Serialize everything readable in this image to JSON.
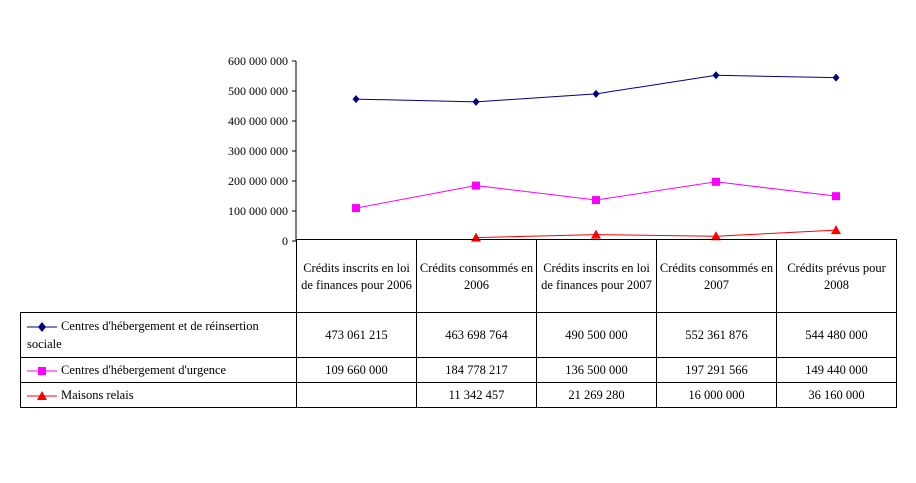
{
  "chart_data": {
    "type": "line",
    "title": "",
    "xlabel": "",
    "ylabel": "",
    "ylim": [
      0,
      600000000
    ],
    "yticks": [
      "0",
      "100 000 000",
      "200 000 000",
      "300 000 000",
      "400 000 000",
      "500 000 000",
      "600 000 000"
    ],
    "categories": [
      "Crédits inscrits en loi de finances pour 2006",
      "Crédits consommés en 2006",
      "Crédits inscrits en loi de finances pour 2007",
      "Crédits consommés en 2007",
      "Crédits prévus pour 2008"
    ],
    "series": [
      {
        "name": "Centres d'hébergement et de réinsertion sociale",
        "color": "#000080",
        "marker": "diamond",
        "values": [
          473061215,
          463698764,
          490500000,
          552361876,
          544480000
        ],
        "labels": [
          "473 061 215",
          "463 698 764",
          "490 500 000",
          "552 361 876",
          "544 480 000"
        ]
      },
      {
        "name": "Centres d'hébergement d'urgence",
        "color": "#ff00ff",
        "marker": "square",
        "values": [
          109660000,
          184778217,
          136500000,
          197291566,
          149440000
        ],
        "labels": [
          "109 660 000",
          "184 778 217",
          "136 500 000",
          "197 291 566",
          "149 440 000"
        ]
      },
      {
        "name": "Maisons relais",
        "color": "#ff0000",
        "marker": "triangle",
        "values": [
          null,
          11342457,
          21269280,
          16000000,
          36160000
        ],
        "labels": [
          "",
          "11 342 457",
          "21 269 280",
          "16 000 000",
          "36 160 000"
        ]
      }
    ]
  }
}
